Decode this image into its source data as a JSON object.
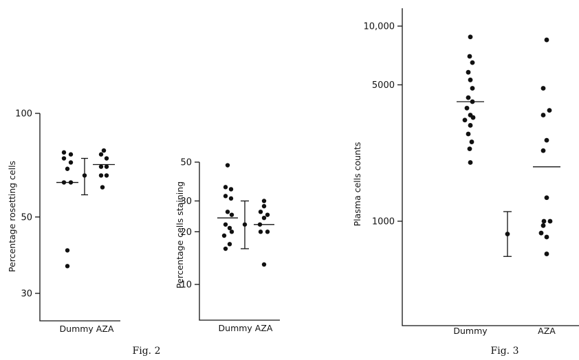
{
  "captions": [
    "Fig. 2",
    "Fig. 3"
  ],
  "chart_data": [
    {
      "id": "rosetting",
      "type": "scatter",
      "scale": "log",
      "ylabel": "Percentage rosetting cells",
      "ylim": [
        25,
        100
      ],
      "yticks": [
        30,
        50,
        100
      ],
      "ytick_labels": [
        "30",
        "50",
        "100"
      ],
      "xlabel": "Dummy AZA",
      "groups": [
        {
          "name": "Dummy",
          "points": [
            77,
            76,
            74,
            72,
            69,
            63,
            63,
            40,
            36
          ],
          "mean": 63
        },
        {
          "name": "AZA",
          "points": [
            78,
            76,
            74,
            70,
            70,
            66,
            66,
            61
          ],
          "mean": 71
        }
      ],
      "summary": {
        "point": 66,
        "low": 58,
        "high": 74
      }
    },
    {
      "id": "staining",
      "type": "scatter",
      "scale": "log",
      "ylabel": "Percentage cells staining",
      "ylim": [
        7.5,
        50
      ],
      "yticks": [
        10,
        20,
        30,
        50
      ],
      "ytick_labels": [
        "10",
        "20",
        "30",
        "50"
      ],
      "xlabel": "Dummy AZA",
      "groups": [
        {
          "name": "Dummy",
          "points": [
            48,
            36,
            35,
            32,
            31,
            26,
            25,
            22,
            21,
            20,
            19,
            17,
            16
          ],
          "mean": 24
        },
        {
          "name": "AZA",
          "points": [
            30,
            28,
            26,
            25,
            24,
            22,
            20,
            20,
            13
          ],
          "mean": 22
        }
      ],
      "summary": {
        "point": 22,
        "low": 16,
        "high": 30
      }
    },
    {
      "id": "plasma",
      "type": "scatter",
      "scale": "log",
      "ylabel": "Plasma cells counts",
      "ylim": [
        300,
        14000
      ],
      "yticks": [
        1000,
        5000,
        10000
      ],
      "ytick_labels": [
        "1000",
        "5000",
        "10,000"
      ],
      "xlabel_left": "Dummy",
      "xlabel_right": "AZA",
      "groups": [
        {
          "name": "Dummy",
          "points": [
            8800,
            7000,
            6500,
            5800,
            5300,
            4800,
            4300,
            4100,
            3800,
            3500,
            3400,
            3300,
            3100,
            2800,
            2550,
            2350,
            2000
          ],
          "mean": 4100
        },
        {
          "name": "AZA",
          "points": [
            8500,
            4800,
            3700,
            3500,
            2600,
            2300,
            1320,
            1000,
            1000,
            950,
            870,
            830,
            680
          ],
          "mean": 1900
        }
      ],
      "summary": {
        "point": 860,
        "low": 660,
        "high": 1120
      }
    }
  ]
}
